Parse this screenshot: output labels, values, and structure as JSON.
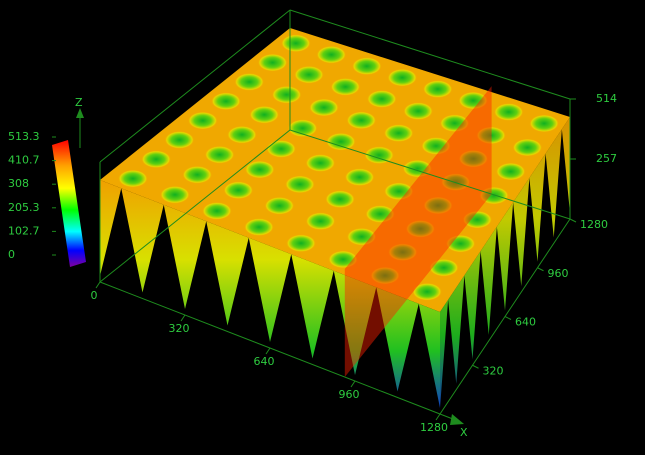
{
  "chart_data": {
    "type": "surface",
    "x_label": "X",
    "z_label": "Z",
    "xlim": [
      0,
      1280
    ],
    "xticks": [
      0,
      320,
      640,
      960,
      1280
    ],
    "ylim": [
      0,
      1280
    ],
    "yticks": [
      320,
      640,
      960,
      1280
    ],
    "zlim": [
      0,
      514
    ],
    "zticks": [
      257,
      514
    ],
    "colorbar": {
      "lim": [
        0,
        513.3
      ],
      "ticks": [
        513.3,
        410.7,
        308,
        205.3,
        102.7,
        0
      ]
    },
    "grid": true
  }
}
